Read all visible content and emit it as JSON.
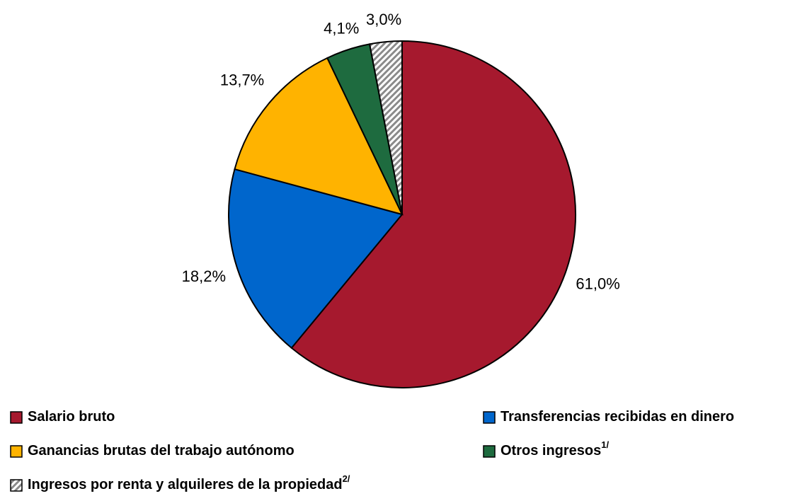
{
  "chart_data": {
    "type": "pie",
    "series": [
      {
        "name": "Salario bruto",
        "color": "#a6192e",
        "values": [
          61.0
        ],
        "value_labels": [
          "61,0%"
        ]
      },
      {
        "name": "Transferencias recibidas en dinero",
        "color": "#0066cc",
        "values": [
          18.2
        ],
        "value_labels": [
          "18,2%"
        ]
      },
      {
        "name": "Ganancias brutas del trabajo autónomo",
        "color": "#ffb300",
        "values": [
          13.7
        ],
        "value_labels": [
          "13,7%"
        ]
      },
      {
        "name": "Otros ingresos",
        "note": "1/",
        "color": "#1e6b3f",
        "values": [
          4.1
        ],
        "value_labels": [
          "4,1%"
        ]
      },
      {
        "name": "Ingresos por renta y alquileres de la propiedad",
        "note": "2/",
        "color": "hatch",
        "values": [
          3.0
        ],
        "value_labels": [
          "3,0%"
        ]
      }
    ]
  }
}
